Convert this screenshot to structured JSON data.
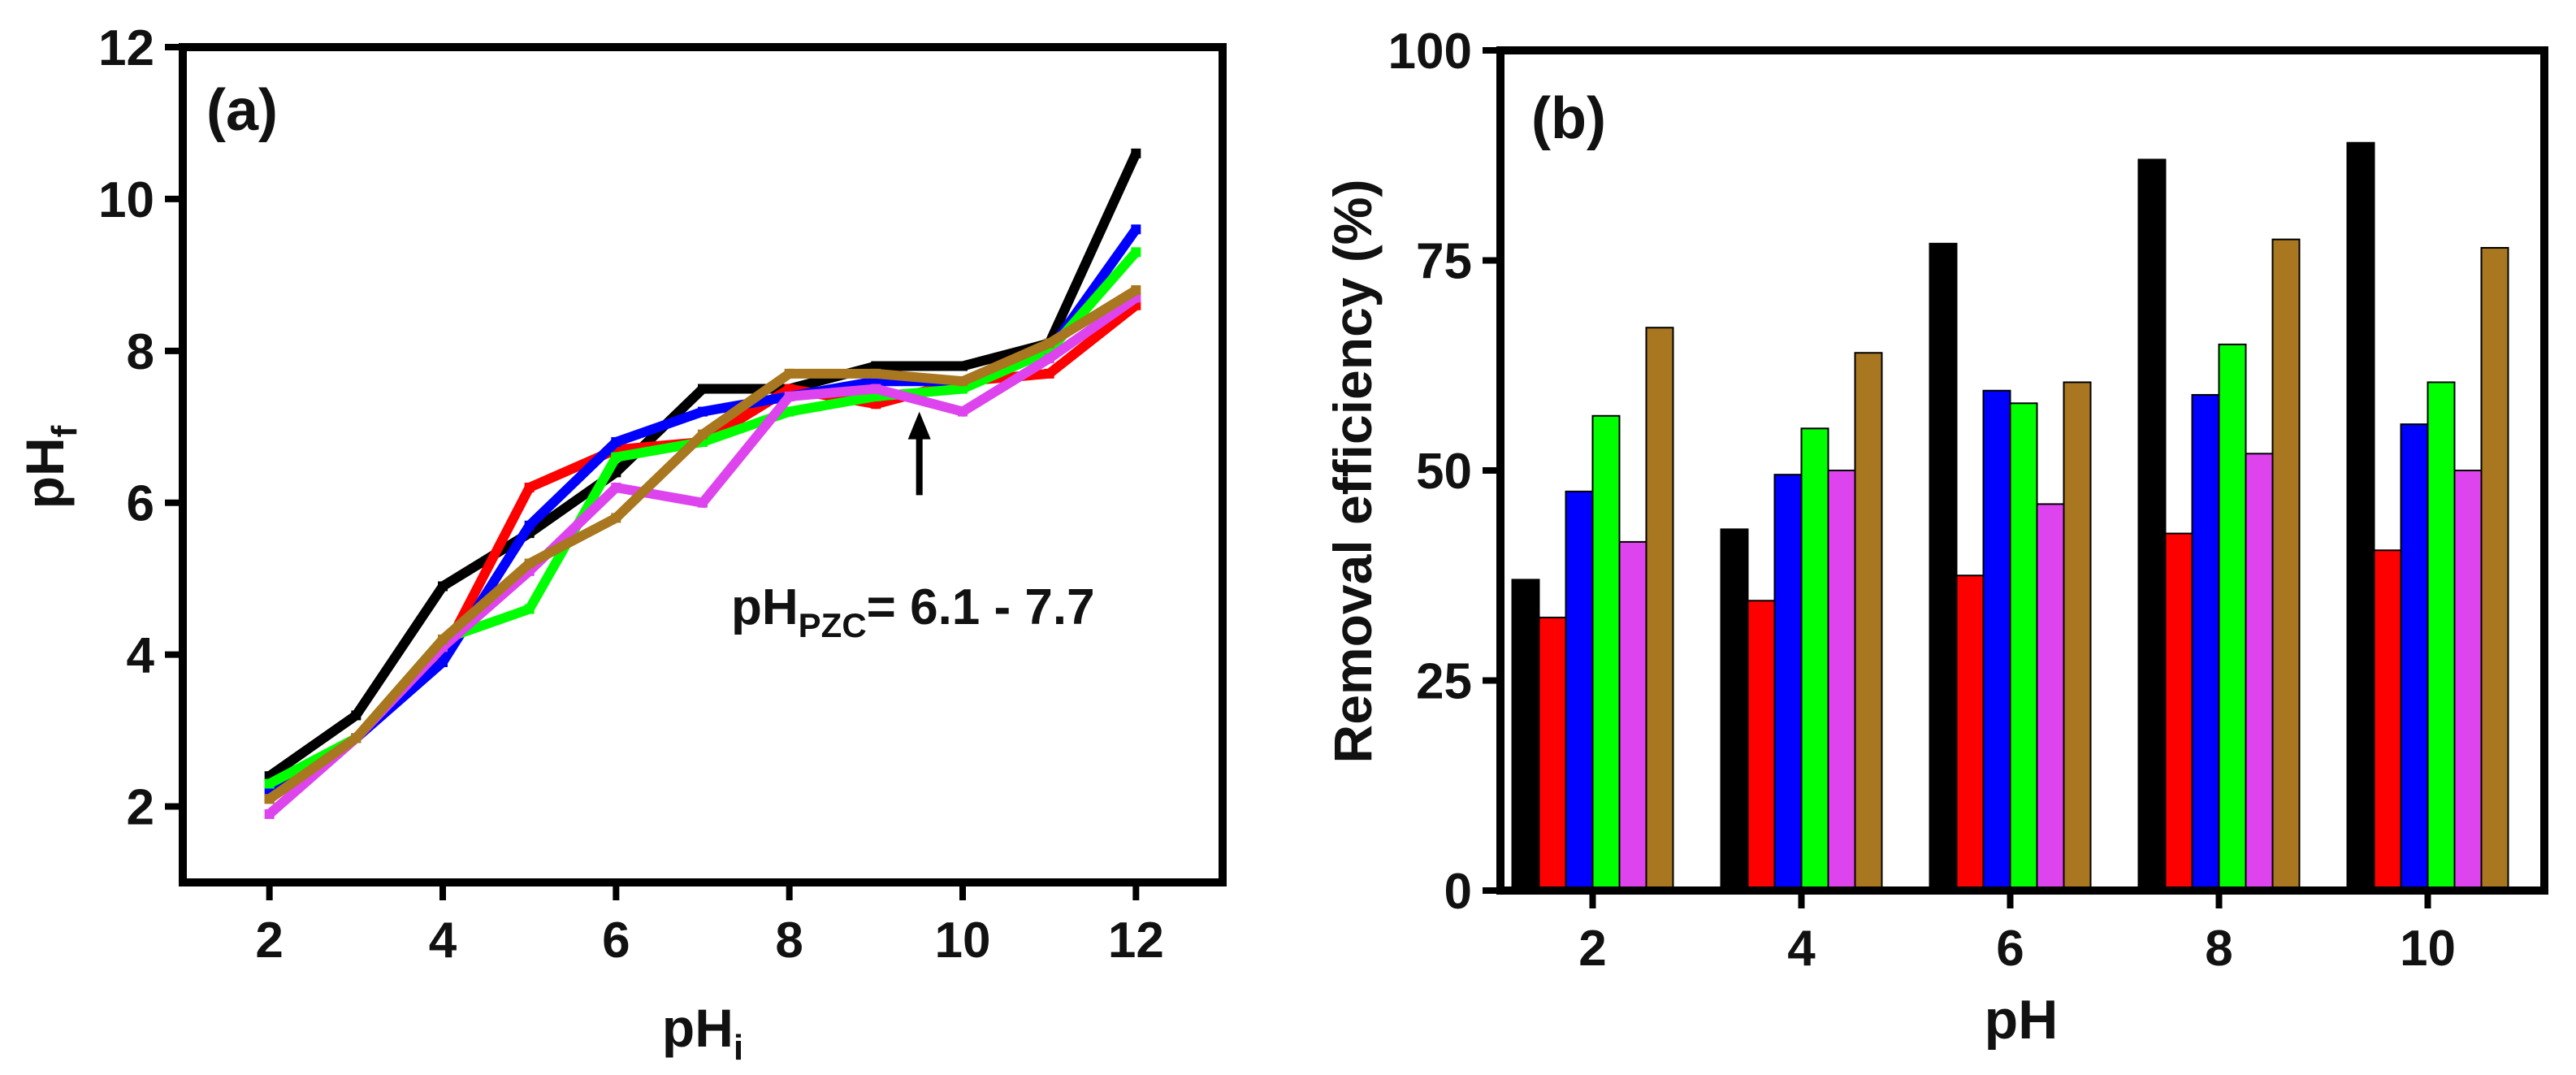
{
  "chart_data": [
    {
      "type": "line",
      "panel_label": "(a)",
      "xlabel": "pH",
      "xlabel_sub": "i",
      "ylabel": "pH",
      "ylabel_sub": "f",
      "xlim": [
        1,
        13
      ],
      "ylim": [
        1,
        12
      ],
      "xticks": [
        2,
        4,
        6,
        8,
        10,
        12
      ],
      "yticks": [
        2,
        4,
        6,
        8,
        10,
        12
      ],
      "x": [
        2,
        3,
        4,
        5,
        6,
        7,
        8,
        9,
        10,
        11,
        12
      ],
      "series": [
        {
          "name": "black",
          "color": "#000000",
          "values": [
            2.4,
            3.2,
            4.9,
            5.6,
            6.4,
            7.5,
            7.5,
            7.8,
            7.8,
            8.1,
            10.6
          ]
        },
        {
          "name": "red",
          "color": "#ff0000",
          "values": [
            2.1,
            2.9,
            4.0,
            6.2,
            6.7,
            6.8,
            7.5,
            7.3,
            7.6,
            7.7,
            8.6
          ]
        },
        {
          "name": "blue",
          "color": "#0000ff",
          "values": [
            2.2,
            2.9,
            3.9,
            5.7,
            6.8,
            7.2,
            7.4,
            7.6,
            7.6,
            8.0,
            9.6
          ]
        },
        {
          "name": "green",
          "color": "#00ff00",
          "values": [
            2.3,
            2.9,
            4.2,
            4.6,
            6.6,
            6.8,
            7.2,
            7.4,
            7.5,
            8.0,
            9.3
          ]
        },
        {
          "name": "magenta",
          "color": "#dd44ee",
          "values": [
            1.9,
            2.9,
            4.1,
            5.1,
            6.2,
            6.0,
            7.4,
            7.5,
            7.2,
            7.9,
            8.7
          ]
        },
        {
          "name": "gold",
          "color": "#a8771f",
          "values": [
            2.1,
            2.9,
            4.2,
            5.2,
            5.8,
            6.9,
            7.7,
            7.7,
            7.6,
            8.1,
            8.8
          ]
        }
      ],
      "annotation": {
        "text_main": "pH",
        "text_sub": "PZC",
        "text_rest": "= 6.1 - 7.7",
        "arrow_x": 9.5,
        "arrow_from_y": 6.1,
        "arrow_to_y": 7.2
      }
    },
    {
      "type": "bar",
      "panel_label": "(b)",
      "xlabel": "pH",
      "ylabel": "Removal efficiency (%)",
      "ylim": [
        0,
        100
      ],
      "yticks": [
        0,
        25,
        50,
        75,
        100
      ],
      "categories": [
        "2",
        "4",
        "6",
        "8",
        "10"
      ],
      "series": [
        {
          "name": "black",
          "color": "#000000",
          "values": [
            37,
            43,
            77,
            87,
            89
          ]
        },
        {
          "name": "red",
          "color": "#ff0000",
          "values": [
            32.5,
            34.5,
            37.5,
            42.5,
            40.5
          ]
        },
        {
          "name": "blue",
          "color": "#0000ff",
          "values": [
            47.5,
            49.5,
            59.5,
            59,
            55.5
          ]
        },
        {
          "name": "green",
          "color": "#00ff00",
          "values": [
            56.5,
            55,
            58,
            65,
            60.5
          ]
        },
        {
          "name": "magenta",
          "color": "#dd44ee",
          "values": [
            41.5,
            50,
            46,
            52,
            50
          ]
        },
        {
          "name": "gold",
          "color": "#a8771f",
          "values": [
            67,
            64,
            60.5,
            77.5,
            76.5
          ]
        }
      ]
    }
  ]
}
